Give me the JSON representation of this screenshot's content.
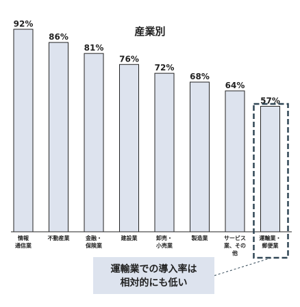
{
  "chart_data": {
    "type": "bar",
    "title": "産業別",
    "categories": [
      [
        "情報",
        "通信業"
      ],
      [
        "不動産業"
      ],
      [
        "金融・",
        "保険業"
      ],
      [
        "建設業"
      ],
      [
        "卸売・",
        "小売業"
      ],
      [
        "製造業"
      ],
      [
        "サービス",
        "業、その",
        "他"
      ],
      [
        "運輸業・",
        "郵便業"
      ]
    ],
    "values": [
      92,
      86,
      81,
      76,
      72,
      68,
      64,
      57
    ],
    "value_labels": [
      "92%",
      "86%",
      "81%",
      "76%",
      "72%",
      "68%",
      "64%",
      "57%"
    ],
    "ylim": [
      0,
      100
    ],
    "grid": false,
    "bar_color": "#dde3ee",
    "bar_edge_color": "#222222",
    "highlight_index": 7,
    "highlight_color": "#2f4554",
    "callout": {
      "lines": [
        "運輸業での導入率は",
        "相対的にも低い"
      ],
      "color": "#2f4554",
      "background": "#dde3ee"
    }
  }
}
